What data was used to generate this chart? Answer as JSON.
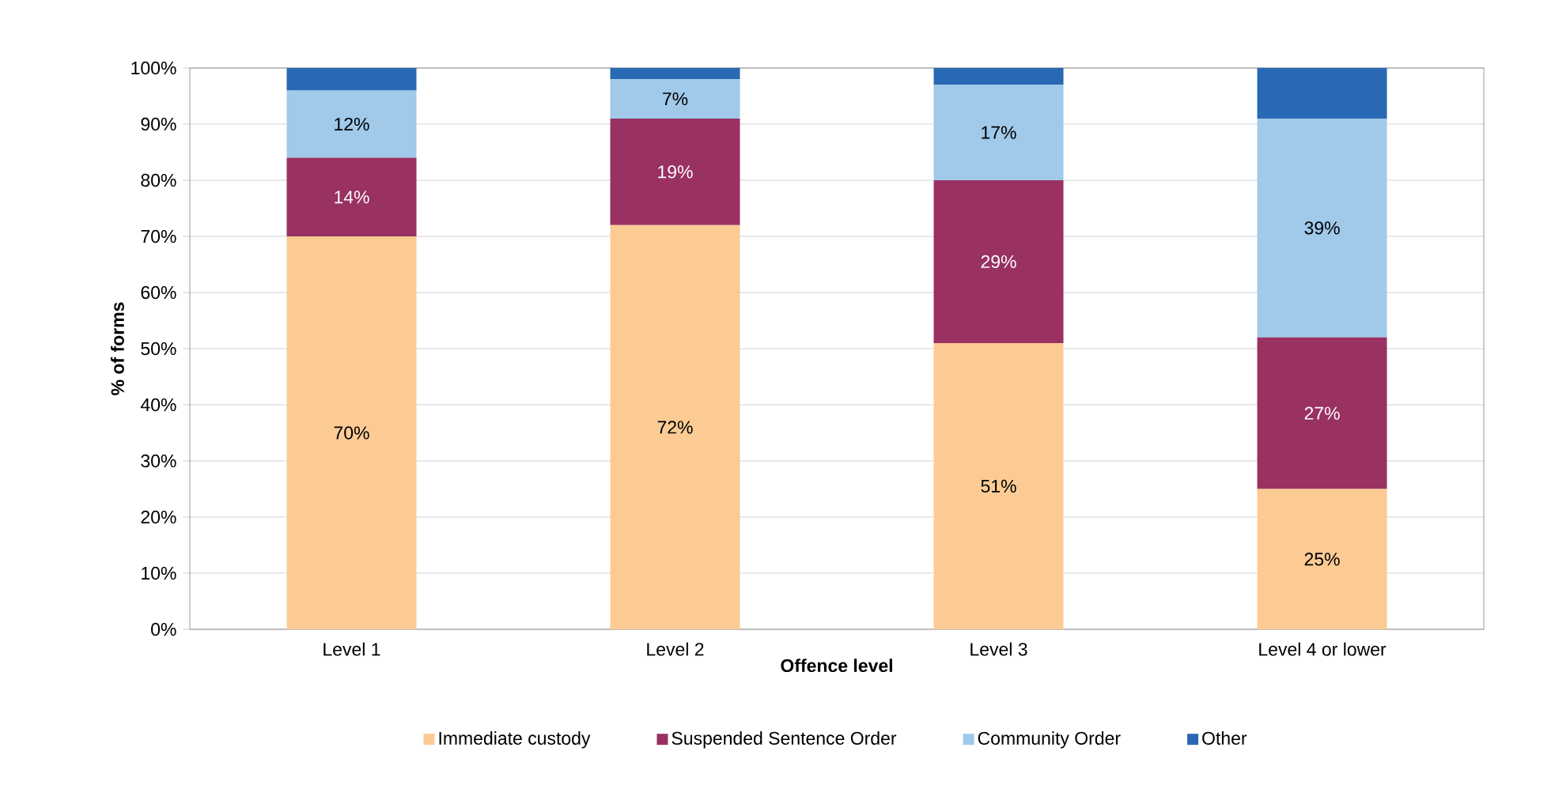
{
  "chart_data": {
    "type": "bar",
    "stacked": true,
    "xlabel": "Offence level",
    "ylabel": "% of forms",
    "categories": [
      "Level 1",
      "Level 2",
      "Level 3",
      "Level 4 or lower"
    ],
    "series": [
      {
        "name": "Immediate custody",
        "color": "#fccb94",
        "values": [
          70,
          72,
          51,
          25
        ],
        "value_labels": [
          "70%",
          "72%",
          "51%",
          "25%"
        ]
      },
      {
        "name": "Suspended Sentence Order",
        "color": "#993162",
        "values": [
          14,
          19,
          29,
          27
        ],
        "value_labels": [
          "14%",
          "19%",
          "29%",
          "27%"
        ]
      },
      {
        "name": "Community Order",
        "color": "#a0c9ea",
        "values": [
          12,
          7,
          17,
          39
        ],
        "value_labels": [
          "12%",
          "7%",
          "17%",
          "39%"
        ]
      },
      {
        "name": "Other",
        "color": "#2968b2",
        "values": [
          4,
          2,
          3,
          9
        ]
      }
    ],
    "ylim": [
      0,
      100
    ],
    "yticks": [
      {
        "value": 0,
        "label": "0%"
      },
      {
        "value": 10,
        "label": "10%"
      },
      {
        "value": 20,
        "label": "20%"
      },
      {
        "value": 30,
        "label": "30%"
      },
      {
        "value": 40,
        "label": "40%"
      },
      {
        "value": 50,
        "label": "50%"
      },
      {
        "value": 60,
        "label": "60%"
      },
      {
        "value": 70,
        "label": "70%"
      },
      {
        "value": 80,
        "label": "80%"
      },
      {
        "value": 90,
        "label": "90%"
      },
      {
        "value": 100,
        "label": "100%"
      }
    ],
    "grid": "y",
    "legend": "bottom"
  }
}
